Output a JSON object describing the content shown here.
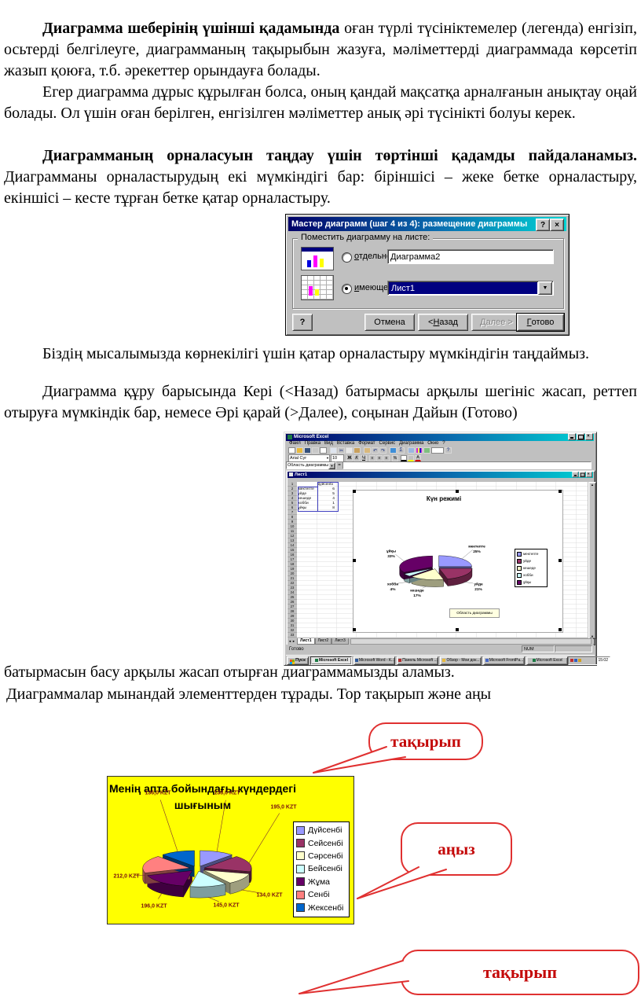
{
  "doc": {
    "p1_bold": "Диаграмма шеберінің үшінші қадамында",
    "p1_rest": " оған түрлі түсініктемелер (легенда) енгізіп, осьтерді белгілеуге, диаграмманың тақырыбын жазуға, мәліметтерді диаграммада көрсетіп жазып қоюға, т.б. әрекеттер орындауға болады.",
    "p2": "Егер диаграмма дұрыс құрылған болса, оның қандай мақсатқа арналғанын анықтау оңай болады. Ол үшін оған берілген, енгізілген мәліметтер анық әрі түсінікті болуы керек.",
    "p3_bold": "Диаграмманың орналасуын таңдау үшін төртінші қадамды пайдаланамыз.",
    "p3_rest": " Диаграмманы орналастырудың екі мүмкіндігі бар: біріншісі – жеке бетке орналастыру, екіншісі – кесте тұрған бетке қатар орналастыру.",
    "p4": "Біздің мысалымызда көрнекілігі үшін қатар орналастыру мүмкіндігін таңдаймыз.",
    "p5": "Диаграмма құру барысында Кері (<Назад) батырмасы арқылы шегініс жасап, реттеп отыруға мүмкіндік бар, немесе Әрі қарай (>Далее), соңынан Дайын (Готово)",
    "p6": "батырмасын басу арқылы жасап отырған диаграммамызды аламыз.",
    "p7": "Диаграммалар мынандай  элементтерден тұрады.  Тор тақырып  және аңы"
  },
  "dialog": {
    "title": "Мастер диаграмм (шаг 4 из 4): размещение диаграммы",
    "group_label": "Поместить диаграмму на листе:",
    "option_new_sheet": {
      "label": "отдельном:",
      "value": "Диаграмма2",
      "selected": false
    },
    "option_existing": {
      "label": "имеющемся:",
      "value": "Лист1",
      "selected": true
    },
    "buttons": {
      "help": "?",
      "cancel": "Отмена",
      "back": "< Назад",
      "next": "Далее >",
      "finish": "Готово"
    },
    "titlebar_buttons": {
      "help": "?",
      "close": "×"
    }
  },
  "excel": {
    "window_title": "Microsoft Excel",
    "menu": [
      "Файл",
      "Правка",
      "Вид",
      "Вставка",
      "Формат",
      "Сервис",
      "Диаграмма",
      "Окно",
      "?"
    ],
    "font_name": "Arial Cyr",
    "font_size": "10",
    "name_box": "Область диаграммы",
    "formula_prefix": "=",
    "book_title": "Лист1",
    "columns": [
      "A",
      "B",
      "C",
      "D",
      "E",
      "F",
      "G",
      "H",
      "I",
      "J",
      "K",
      "L",
      "M",
      "N",
      "O"
    ],
    "rows_visible": 33,
    "header_row_value": "дүйсенбі",
    "data_rows": [
      [
        "мектепте",
        "6"
      ],
      [
        "уйде",
        "5"
      ],
      [
        "кешеде",
        "4"
      ],
      [
        "хобби",
        "1"
      ],
      [
        "ұйқы",
        "8"
      ]
    ],
    "chart_tooltip": "Область диаграммы",
    "sheet_tabs": [
      "Лист1",
      "Лист2",
      "Лист3"
    ],
    "status_ready": "Готово",
    "status_num": "NUM",
    "taskbar": {
      "start": "Пуск",
      "buttons": [
        "Microsoft Excel",
        "Microsoft Word - К...",
        "Панель Microsoft ...",
        "Обзор - Мои док...",
        "Microsoft FrontPa...",
        "Microsoft Excel"
      ],
      "clock": "15:02"
    }
  },
  "icons": {
    "cut-icon": "✂",
    "undo-icon": "↶",
    "redo-icon": "↷",
    "autosum-icon": "Σ",
    "help-icon": "?",
    "dropdown-icon": "▼",
    "bold-icon": "Ж",
    "italic-icon": "К",
    "underline-icon": "Ч",
    "align-icon": "≡",
    "font-color-icon": "А",
    "percent-icon": "%",
    "scroll-up-icon": "▲",
    "scroll-down-icon": "▼",
    "tab-left-icon": "◄",
    "tab-right-icon": "►"
  },
  "chart_data": [
    {
      "type": "pie",
      "variant": "3d-exploded",
      "title": "Күн режимі",
      "categories": [
        "мектепте",
        "уйде",
        "кешеде",
        "хобби",
        "ұйқы"
      ],
      "values": [
        6,
        5,
        4,
        1,
        8
      ],
      "percent_labels": [
        "25%",
        "21%",
        "17%",
        "4%",
        "33%"
      ],
      "colors": [
        "#9999FF",
        "#993366",
        "#FFFFCC",
        "#CCFFFF",
        "#660066"
      ],
      "legend_position": "right"
    },
    {
      "type": "pie",
      "variant": "3d-exploded",
      "title": "Менің апта бойындағы күндердегі шығыным",
      "title_lines": [
        "Менің апта бойындағы күндердегі",
        "шығыным"
      ],
      "categories": [
        "Дүйсенбі",
        "Сейсенбі",
        "Сәрсенбі",
        "Бейсенбі",
        "Жұма",
        "Сенбі",
        "Жексенбі"
      ],
      "values": [
        138,
        195,
        134,
        145,
        196,
        212,
        136
      ],
      "data_labels": [
        "138,0 KZT",
        "195,0 KZT",
        "134,0 KZT",
        "145,0 KZT",
        "196,0 KZT",
        "212,0 KZT",
        "136,0 KZT"
      ],
      "currency": "KZT",
      "colors": [
        "#9999FF",
        "#993366",
        "#FFFFCC",
        "#CCFFFF",
        "#660066",
        "#FF8080",
        "#0066CC"
      ],
      "legend_position": "right",
      "background": "#FFFF00"
    }
  ],
  "callouts": {
    "c1": "тақырып",
    "c2": "аңыз",
    "c3": "тақырып"
  }
}
